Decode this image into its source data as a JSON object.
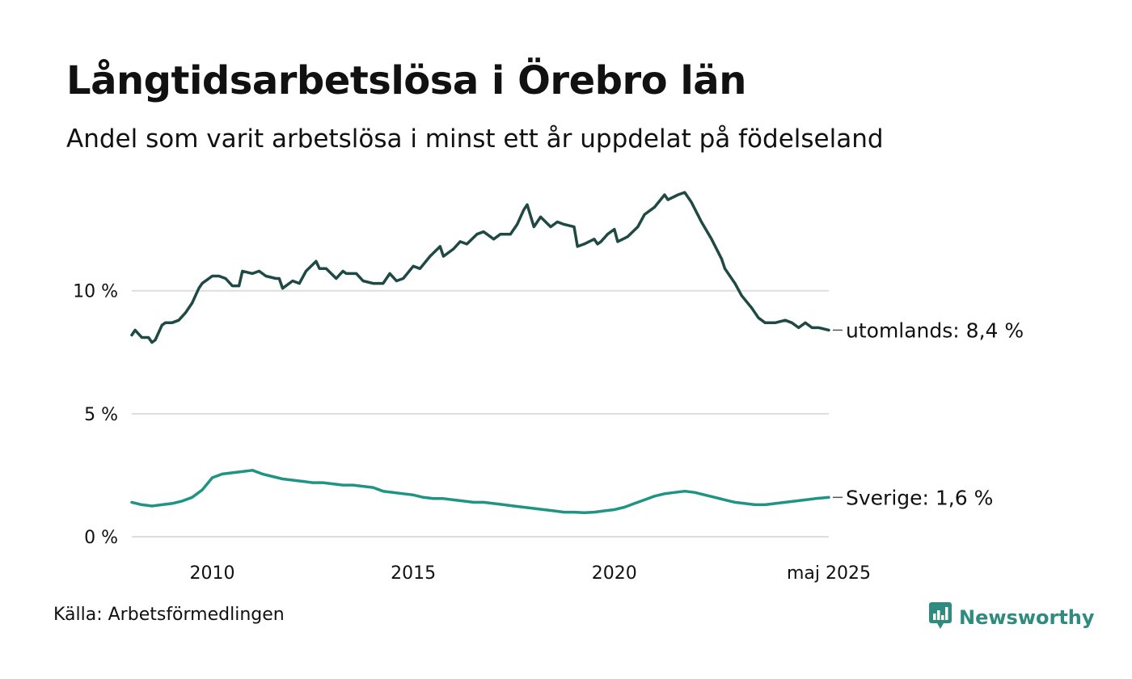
{
  "header": {
    "title": "Långtidsarbetslösa i Örebro län",
    "subtitle": "Andel som varit arbetslösa i minst ett år uppdelat på födelseland"
  },
  "footer": {
    "source": "Källa: Arbetsförmedlingen",
    "brand": "Newsworthy"
  },
  "colors": {
    "utomlands": "#1f4a44",
    "sverige": "#1f9485",
    "grid": "#dddddd",
    "brand": "#2e8b7f"
  },
  "icons": {
    "logo": "bar-chart-bubble-icon"
  },
  "chart_data": {
    "type": "line",
    "x_start": "2008-01",
    "x_end": "2025-05",
    "x_ticks": [
      {
        "date": "2010-01",
        "label": "2010"
      },
      {
        "date": "2015-01",
        "label": "2015"
      },
      {
        "date": "2020-01",
        "label": "2020"
      },
      {
        "date": "2025-05",
        "label": "maj 2025"
      }
    ],
    "y_ticks": [
      {
        "value": 0,
        "label": "0 %"
      },
      {
        "value": 5,
        "label": "5 %"
      },
      {
        "value": 10,
        "label": "10 %"
      }
    ],
    "ylim": [
      0,
      14
    ],
    "grid": true,
    "series": [
      {
        "name": "utomlands",
        "end_label": "utomlands: 8,4 %",
        "color": "#1f4a44",
        "points": [
          [
            "2008-01",
            8.2
          ],
          [
            "2008-02",
            8.4
          ],
          [
            "2008-04",
            8.1
          ],
          [
            "2008-06",
            8.1
          ],
          [
            "2008-07",
            7.9
          ],
          [
            "2008-08",
            8.0
          ],
          [
            "2008-10",
            8.6
          ],
          [
            "2008-11",
            8.7
          ],
          [
            "2009-01",
            8.7
          ],
          [
            "2009-03",
            8.8
          ],
          [
            "2009-05",
            9.1
          ],
          [
            "2009-07",
            9.5
          ],
          [
            "2009-09",
            10.1
          ],
          [
            "2009-10",
            10.3
          ],
          [
            "2010-01",
            10.6
          ],
          [
            "2010-03",
            10.6
          ],
          [
            "2010-05",
            10.5
          ],
          [
            "2010-07",
            10.2
          ],
          [
            "2010-09",
            10.2
          ],
          [
            "2010-10",
            10.8
          ],
          [
            "2011-01",
            10.7
          ],
          [
            "2011-03",
            10.8
          ],
          [
            "2011-05",
            10.6
          ],
          [
            "2011-08",
            10.5
          ],
          [
            "2011-09",
            10.5
          ],
          [
            "2011-10",
            10.1
          ],
          [
            "2012-01",
            10.4
          ],
          [
            "2012-03",
            10.3
          ],
          [
            "2012-05",
            10.8
          ],
          [
            "2012-08",
            11.2
          ],
          [
            "2012-09",
            10.9
          ],
          [
            "2012-11",
            10.9
          ],
          [
            "2013-02",
            10.5
          ],
          [
            "2013-04",
            10.8
          ],
          [
            "2013-05",
            10.7
          ],
          [
            "2013-08",
            10.7
          ],
          [
            "2013-10",
            10.4
          ],
          [
            "2014-01",
            10.3
          ],
          [
            "2014-04",
            10.3
          ],
          [
            "2014-06",
            10.7
          ],
          [
            "2014-08",
            10.4
          ],
          [
            "2014-10",
            10.5
          ],
          [
            "2015-01",
            11.0
          ],
          [
            "2015-03",
            10.9
          ],
          [
            "2015-06",
            11.4
          ],
          [
            "2015-09",
            11.8
          ],
          [
            "2015-10",
            11.4
          ],
          [
            "2016-01",
            11.7
          ],
          [
            "2016-03",
            12.0
          ],
          [
            "2016-05",
            11.9
          ],
          [
            "2016-08",
            12.3
          ],
          [
            "2016-10",
            12.4
          ],
          [
            "2017-01",
            12.1
          ],
          [
            "2017-03",
            12.3
          ],
          [
            "2017-06",
            12.3
          ],
          [
            "2017-08",
            12.7
          ],
          [
            "2017-10",
            13.3
          ],
          [
            "2017-11",
            13.5
          ],
          [
            "2018-01",
            12.6
          ],
          [
            "2018-03",
            13.0
          ],
          [
            "2018-06",
            12.6
          ],
          [
            "2018-08",
            12.8
          ],
          [
            "2018-10",
            12.7
          ],
          [
            "2019-01",
            12.6
          ],
          [
            "2019-02",
            11.8
          ],
          [
            "2019-04",
            11.9
          ],
          [
            "2019-07",
            12.1
          ],
          [
            "2019-08",
            11.9
          ],
          [
            "2019-09",
            12.0
          ],
          [
            "2019-11",
            12.3
          ],
          [
            "2020-01",
            12.5
          ],
          [
            "2020-02",
            12.0
          ],
          [
            "2020-05",
            12.2
          ],
          [
            "2020-08",
            12.6
          ],
          [
            "2020-10",
            13.1
          ],
          [
            "2021-01",
            13.4
          ],
          [
            "2021-04",
            13.9
          ],
          [
            "2021-05",
            13.7
          ],
          [
            "2021-08",
            13.9
          ],
          [
            "2021-10",
            14.0
          ],
          [
            "2021-12",
            13.6
          ],
          [
            "2022-03",
            12.8
          ],
          [
            "2022-06",
            12.1
          ],
          [
            "2022-09",
            11.3
          ],
          [
            "2022-10",
            10.9
          ],
          [
            "2023-01",
            10.3
          ],
          [
            "2023-03",
            9.8
          ],
          [
            "2023-06",
            9.3
          ],
          [
            "2023-08",
            8.9
          ],
          [
            "2023-10",
            8.7
          ],
          [
            "2024-01",
            8.7
          ],
          [
            "2024-04",
            8.8
          ],
          [
            "2024-06",
            8.7
          ],
          [
            "2024-08",
            8.5
          ],
          [
            "2024-10",
            8.7
          ],
          [
            "2024-12",
            8.5
          ],
          [
            "2025-02",
            8.5
          ],
          [
            "2025-05",
            8.4
          ]
        ]
      },
      {
        "name": "Sverige",
        "end_label": "Sverige: 1,6 %",
        "color": "#1f9485",
        "points": [
          [
            "2008-01",
            1.4
          ],
          [
            "2008-04",
            1.3
          ],
          [
            "2008-07",
            1.25
          ],
          [
            "2008-10",
            1.3
          ],
          [
            "2009-01",
            1.35
          ],
          [
            "2009-04",
            1.45
          ],
          [
            "2009-07",
            1.6
          ],
          [
            "2009-10",
            1.9
          ],
          [
            "2010-01",
            2.4
          ],
          [
            "2010-04",
            2.55
          ],
          [
            "2010-07",
            2.6
          ],
          [
            "2010-10",
            2.65
          ],
          [
            "2011-01",
            2.7
          ],
          [
            "2011-04",
            2.55
          ],
          [
            "2011-07",
            2.45
          ],
          [
            "2011-10",
            2.35
          ],
          [
            "2012-01",
            2.3
          ],
          [
            "2012-04",
            2.25
          ],
          [
            "2012-07",
            2.2
          ],
          [
            "2012-10",
            2.2
          ],
          [
            "2013-01",
            2.15
          ],
          [
            "2013-04",
            2.1
          ],
          [
            "2013-07",
            2.1
          ],
          [
            "2013-10",
            2.05
          ],
          [
            "2014-01",
            2.0
          ],
          [
            "2014-04",
            1.85
          ],
          [
            "2014-07",
            1.8
          ],
          [
            "2014-10",
            1.75
          ],
          [
            "2015-01",
            1.7
          ],
          [
            "2015-04",
            1.6
          ],
          [
            "2015-07",
            1.55
          ],
          [
            "2015-10",
            1.55
          ],
          [
            "2016-01",
            1.5
          ],
          [
            "2016-04",
            1.45
          ],
          [
            "2016-07",
            1.4
          ],
          [
            "2016-10",
            1.4
          ],
          [
            "2017-01",
            1.35
          ],
          [
            "2017-04",
            1.3
          ],
          [
            "2017-07",
            1.25
          ],
          [
            "2017-10",
            1.2
          ],
          [
            "2018-01",
            1.15
          ],
          [
            "2018-04",
            1.1
          ],
          [
            "2018-07",
            1.05
          ],
          [
            "2018-10",
            1.0
          ],
          [
            "2019-01",
            1.0
          ],
          [
            "2019-04",
            0.98
          ],
          [
            "2019-07",
            1.0
          ],
          [
            "2019-10",
            1.05
          ],
          [
            "2020-01",
            1.1
          ],
          [
            "2020-04",
            1.2
          ],
          [
            "2020-07",
            1.35
          ],
          [
            "2020-10",
            1.5
          ],
          [
            "2021-01",
            1.65
          ],
          [
            "2021-04",
            1.75
          ],
          [
            "2021-07",
            1.8
          ],
          [
            "2021-10",
            1.85
          ],
          [
            "2022-01",
            1.8
          ],
          [
            "2022-04",
            1.7
          ],
          [
            "2022-07",
            1.6
          ],
          [
            "2022-10",
            1.5
          ],
          [
            "2023-01",
            1.4
          ],
          [
            "2023-04",
            1.35
          ],
          [
            "2023-07",
            1.3
          ],
          [
            "2023-10",
            1.3
          ],
          [
            "2024-01",
            1.35
          ],
          [
            "2024-04",
            1.4
          ],
          [
            "2024-07",
            1.45
          ],
          [
            "2024-10",
            1.5
          ],
          [
            "2025-01",
            1.55
          ],
          [
            "2025-05",
            1.6
          ]
        ]
      }
    ]
  }
}
